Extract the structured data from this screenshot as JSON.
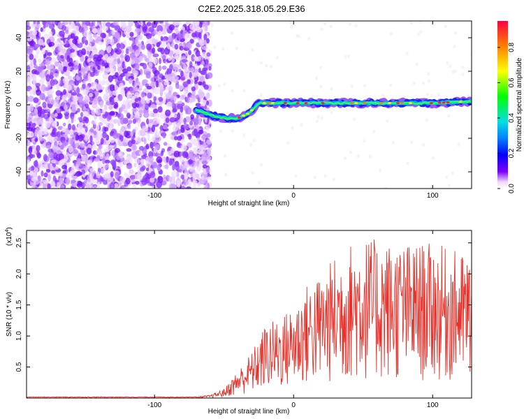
{
  "title": "C2E2.2025.318.05.29.E36",
  "chart_data": [
    {
      "type": "heatmap",
      "xlabel": "Height of straight line (km)",
      "ylabel": "Frequency (Hz)",
      "xlim": [
        -192,
        128
      ],
      "ylim": [
        -50,
        50
      ],
      "xticks": [
        -100,
        0,
        100
      ],
      "yticks": [
        -40,
        -20,
        0,
        20,
        40
      ],
      "colorbar": {
        "label": "Normalized spectral amplitude",
        "range": [
          0,
          0.95
        ],
        "ticks": [
          0.0,
          0.2,
          0.4,
          0.6,
          0.8
        ]
      },
      "noise_region_x": [
        -192,
        -65
      ],
      "signal_ridge": [
        {
          "x": -70,
          "y": -3
        },
        {
          "x": -60,
          "y": -6
        },
        {
          "x": -50,
          "y": -8
        },
        {
          "x": -40,
          "y": -8
        },
        {
          "x": -32,
          "y": -5
        },
        {
          "x": -25,
          "y": 1
        },
        {
          "x": -10,
          "y": 1
        },
        {
          "x": 0,
          "y": 1
        },
        {
          "x": 20,
          "y": 1
        },
        {
          "x": 40,
          "y": 1
        },
        {
          "x": 60,
          "y": 1
        },
        {
          "x": 80,
          "y": 1
        },
        {
          "x": 100,
          "y": 1
        },
        {
          "x": 128,
          "y": 2
        }
      ]
    },
    {
      "type": "line",
      "xlabel": "Height of straight line (km)",
      "ylabel": "SNR (10 * v/v)",
      "scale_label": "(x10",
      "scale_exponent": "4",
      "xlim": [
        -192,
        128
      ],
      "ylim": [
        0,
        2.7
      ],
      "xticks": [
        -100,
        0,
        100
      ],
      "yticks": [
        0.5,
        1.0,
        1.5,
        2.0,
        2.5
      ],
      "envelope": [
        {
          "x": -192,
          "y": 0.02
        },
        {
          "x": -70,
          "y": 0.02
        },
        {
          "x": -60,
          "y": 0.05
        },
        {
          "x": -50,
          "y": 0.15
        },
        {
          "x": -40,
          "y": 0.45
        },
        {
          "x": -30,
          "y": 0.75
        },
        {
          "x": -20,
          "y": 1.2
        },
        {
          "x": -10,
          "y": 1.3
        },
        {
          "x": 0,
          "y": 1.5
        },
        {
          "x": 10,
          "y": 1.85
        },
        {
          "x": 20,
          "y": 2.0
        },
        {
          "x": 30,
          "y": 2.3
        },
        {
          "x": 40,
          "y": 2.5
        },
        {
          "x": 50,
          "y": 2.6
        },
        {
          "x": 60,
          "y": 2.55
        },
        {
          "x": 80,
          "y": 2.5
        },
        {
          "x": 100,
          "y": 2.5
        },
        {
          "x": 128,
          "y": 2.3
        }
      ],
      "color": "#e8312a"
    }
  ]
}
